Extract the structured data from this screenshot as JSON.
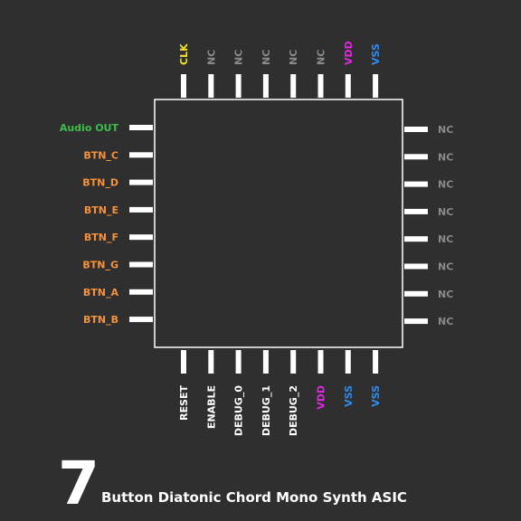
{
  "title_number": "7",
  "title": "Button Diatonic Chord Mono Synth ASIC",
  "pins": {
    "top": [
      {
        "label": "CLK",
        "color": "#f2e21f"
      },
      {
        "label": "NC",
        "color": "#8a8a8a"
      },
      {
        "label": "NC",
        "color": "#8a8a8a"
      },
      {
        "label": "NC",
        "color": "#8a8a8a"
      },
      {
        "label": "NC",
        "color": "#8a8a8a"
      },
      {
        "label": "NC",
        "color": "#8a8a8a"
      },
      {
        "label": "VDD",
        "color": "#e226e2"
      },
      {
        "label": "VSS",
        "color": "#2b8cf0"
      }
    ],
    "left": [
      {
        "label": "Audio OUT",
        "color": "#3dbd4c"
      },
      {
        "label": "BTN_C",
        "color": "#f7923a"
      },
      {
        "label": "BTN_D",
        "color": "#f7923a"
      },
      {
        "label": "BTN_E",
        "color": "#f7923a"
      },
      {
        "label": "BTN_F",
        "color": "#f7923a"
      },
      {
        "label": "BTN_G",
        "color": "#f7923a"
      },
      {
        "label": "BTN_A",
        "color": "#f7923a"
      },
      {
        "label": "BTN_B",
        "color": "#f7923a"
      }
    ],
    "right": [
      {
        "label": "NC",
        "color": "#8a8a8a"
      },
      {
        "label": "NC",
        "color": "#8a8a8a"
      },
      {
        "label": "NC",
        "color": "#8a8a8a"
      },
      {
        "label": "NC",
        "color": "#8a8a8a"
      },
      {
        "label": "NC",
        "color": "#8a8a8a"
      },
      {
        "label": "NC",
        "color": "#8a8a8a"
      },
      {
        "label": "NC",
        "color": "#8a8a8a"
      },
      {
        "label": "NC",
        "color": "#8a8a8a"
      }
    ],
    "bottom": [
      {
        "label": "RESET",
        "color": "#ffffff"
      },
      {
        "label": "ENABLE",
        "color": "#ffffff"
      },
      {
        "label": "DEBUG_0",
        "color": "#ffffff"
      },
      {
        "label": "DEBUG_1",
        "color": "#ffffff"
      },
      {
        "label": "DEBUG_2",
        "color": "#ffffff"
      },
      {
        "label": "VDD",
        "color": "#e226e2"
      },
      {
        "label": "VSS",
        "color": "#2b8cf0"
      },
      {
        "label": "VSS",
        "color": "#2b8cf0"
      }
    ]
  }
}
